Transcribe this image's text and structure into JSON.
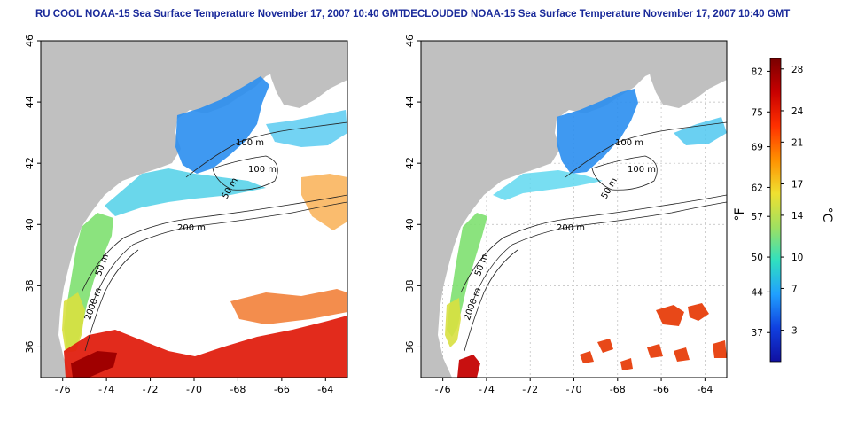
{
  "left_map": {
    "title": "RU COOL NOAA-15 Sea Surface Temperature November 17, 2007 10:40 GMT",
    "x_ticks": [
      "-76",
      "-74",
      "-72",
      "-70",
      "-68",
      "-66",
      "-64"
    ],
    "y_ticks": [
      "36",
      "38",
      "40",
      "42",
      "44",
      "46"
    ],
    "contour_labels": [
      "100 m",
      "100 m",
      "50 m",
      "200 m",
      "50 m",
      "2000 m"
    ]
  },
  "right_map": {
    "title": "DECLOUDED NOAA-15 Sea Surface Temperature November 17, 2007 10:40 GMT",
    "x_ticks": [
      "-76",
      "-74",
      "-72",
      "-70",
      "-68",
      "-66",
      "-64"
    ],
    "y_ticks": [
      "36",
      "38",
      "40",
      "42",
      "44",
      "46"
    ],
    "contour_labels": [
      "100 m",
      "100 m",
      "50 m",
      "200 m",
      "50 m",
      "2000 m"
    ]
  },
  "colorbar": {
    "fahrenheit_label": "°F",
    "celsius_label": "°C",
    "fahrenheit_ticks": [
      "82",
      "75",
      "69",
      "62",
      "57",
      "50",
      "44",
      "37"
    ],
    "celsius_ticks": [
      "28",
      "24",
      "21",
      "17",
      "14",
      "10",
      "7",
      "3"
    ],
    "gradient": [
      "#7a0000",
      "#c80000",
      "#ff3000",
      "#ff9000",
      "#f0e030",
      "#a0e060",
      "#30e0c0",
      "#20a0ff",
      "#1040e0",
      "#1010a0"
    ]
  },
  "colors": {
    "land": "#c0c0c0",
    "water": "#ffffff",
    "title": "#1a2a9a",
    "grid": "#bbbbbb"
  }
}
